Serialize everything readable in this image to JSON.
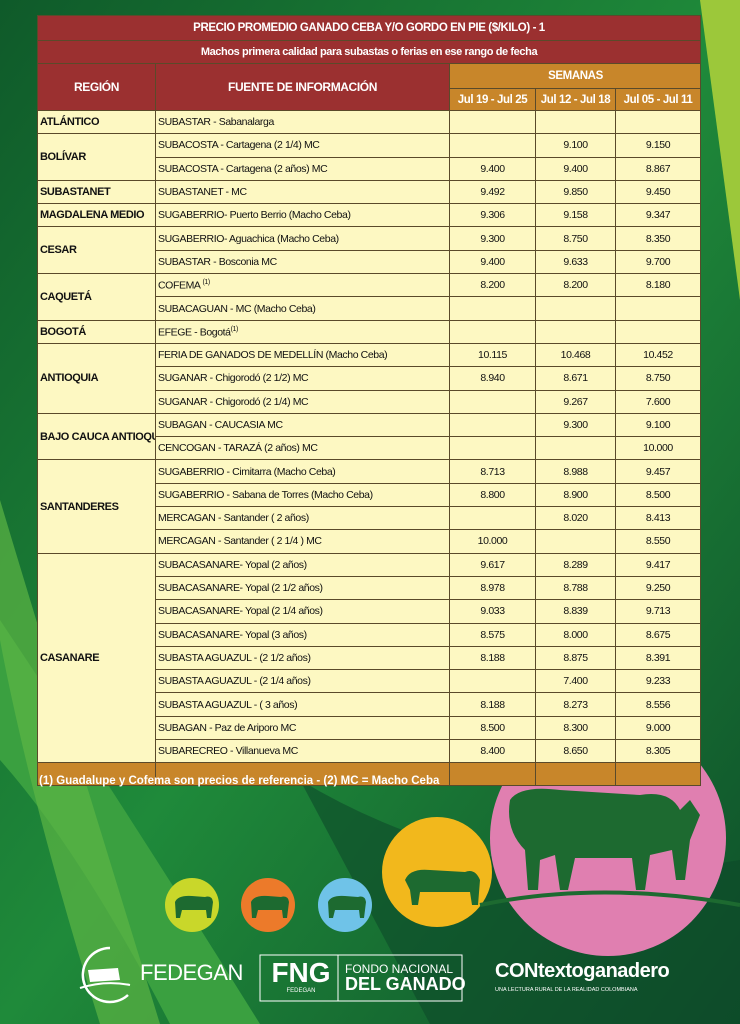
{
  "title": "PRECIO PROMEDIO GANADO CEBA Y/O GORDO EN PIE ($/KILO) - 1",
  "subtitle": "Machos primera calidad para subastas o ferias en ese rango de fecha",
  "headers": {
    "region": "REGIÓN",
    "source": "FUENTE DE INFORMACIÓN",
    "weeks": "SEMANAS",
    "dates": [
      "Jul 19 - Jul 25",
      "Jul 12 - Jul 18",
      "Jul 05 - Jul 11"
    ]
  },
  "regions": [
    {
      "name": "ATLÁNTICO",
      "rows": [
        {
          "source": "SUBASTAR - Sabanalarga",
          "values": [
            "",
            "",
            ""
          ]
        }
      ]
    },
    {
      "name": "BOLÍVAR",
      "rows": [
        {
          "source": "SUBACOSTA - Cartagena (2 1/4) MC",
          "values": [
            "",
            "9.100",
            "9.150"
          ]
        },
        {
          "source": "SUBACOSTA - Cartagena (2 años) MC",
          "values": [
            "9.400",
            "9.400",
            "8.867"
          ]
        }
      ]
    },
    {
      "name": "SUBASTANET",
      "rows": [
        {
          "source": "SUBASTANET - MC",
          "values": [
            "9.492",
            "9.850",
            "9.450"
          ]
        }
      ]
    },
    {
      "name": "MAGDALENA MEDIO",
      "rows": [
        {
          "source": "SUGABERRIO- Puerto Berrio (Macho Ceba)",
          "values": [
            "9.306",
            "9.158",
            "9.347"
          ]
        }
      ]
    },
    {
      "name": "CESAR",
      "rows": [
        {
          "source": "SUGABERRIO- Aguachica  (Macho Ceba)",
          "values": [
            "9.300",
            "8.750",
            "8.350"
          ]
        },
        {
          "source": "SUBASTAR - Bosconia MC",
          "values": [
            "9.400",
            "9.633",
            "9.700"
          ]
        }
      ]
    },
    {
      "name": "CAQUETÁ",
      "rows": [
        {
          "source": "COFEMA ",
          "sup": "(1)",
          "values": [
            "8.200",
            "8.200",
            "8.180"
          ]
        },
        {
          "source": "SUBACAGUAN - MC (Macho Ceba)",
          "values": [
            "",
            "",
            ""
          ]
        }
      ]
    },
    {
      "name": "BOGOTÁ",
      "rows": [
        {
          "source": "EFEGE - Bogotá",
          "sup": "(1)",
          "values": [
            "",
            "",
            ""
          ]
        }
      ]
    },
    {
      "name": "ANTIOQUIA",
      "rows": [
        {
          "source": "FERIA DE GANADOS DE MEDELLÍN (Macho Ceba)",
          "values": [
            "10.115",
            "10.468",
            "10.452"
          ]
        },
        {
          "source": "SUGANAR - Chigorodó (2 1/2) MC",
          "values": [
            "8.940",
            "8.671",
            "8.750"
          ]
        },
        {
          "source": "SUGANAR - Chigorodó (2 1/4) MC",
          "values": [
            "",
            "9.267",
            "7.600"
          ]
        }
      ]
    },
    {
      "name": "BAJO CAUCA ANTIOQUEÑO",
      "rows": [
        {
          "source": "SUBAGAN - CAUCASIA MC",
          "values": [
            "",
            "9.300",
            "9.100"
          ]
        },
        {
          "source": "CENCOGAN - TARAZÁ (2 años) MC",
          "values": [
            "",
            "",
            "10.000"
          ]
        }
      ]
    },
    {
      "name": "SANTANDERES",
      "rows": [
        {
          "source": "SUGABERRIO - Cimitarra (Macho Ceba)",
          "values": [
            "8.713",
            "8.988",
            "9.457"
          ]
        },
        {
          "source": "SUGABERRIO - Sabana de Torres (Macho Ceba)",
          "values": [
            "8.800",
            "8.900",
            "8.500"
          ]
        },
        {
          "source": "MERCAGAN - Santander ( 2 años)",
          "values": [
            "",
            "8.020",
            "8.413"
          ]
        },
        {
          "source": "MERCAGAN - Santander ( 2 1/4 ) MC",
          "values": [
            "10.000",
            "",
            "8.550"
          ]
        }
      ]
    },
    {
      "name": "CASANARE",
      "rows": [
        {
          "source": "SUBACASANARE- Yopal (2 años)",
          "values": [
            "9.617",
            "8.289",
            "9.417"
          ]
        },
        {
          "source": "SUBACASANARE- Yopal (2 1/2 años)",
          "values": [
            "8.978",
            "8.788",
            "9.250"
          ]
        },
        {
          "source": "SUBACASANARE- Yopal (2 1/4 años)",
          "values": [
            "9.033",
            "8.839",
            "9.713"
          ]
        },
        {
          "source": "SUBACASANARE- Yopal (3 años)",
          "values": [
            "8.575",
            "8.000",
            "8.675"
          ]
        },
        {
          "source": "SUBASTA AGUAZUL - (2 1/2 años)",
          "values": [
            "8.188",
            "8.875",
            "8.391"
          ]
        },
        {
          "source": "SUBASTA AGUAZUL - (2 1/4 años)",
          "values": [
            "",
            "7.400",
            "9.233"
          ]
        },
        {
          "source": "SUBASTA AGUAZUL - ( 3 años)",
          "values": [
            "8.188",
            "8.273",
            "8.556"
          ]
        },
        {
          "source": "SUBAGAN - Paz de Ariporo MC",
          "values": [
            "8.500",
            "8.300",
            "9.000"
          ]
        },
        {
          "source": "SUBARECREO - Villanueva MC",
          "values": [
            "8.400",
            "8.650",
            "8.305"
          ]
        }
      ]
    }
  ],
  "footnote": "(1) Guadalupe y Cofema son precios de referencia  -  (2) MC = Macho Ceba",
  "logos": {
    "fedegan": "FEDEGAN",
    "fng_short": "FNG",
    "fng_sub": "FEDEGAN",
    "fng_line1": "FONDO NACIONAL",
    "fng_line2": "DEL GANADO",
    "contexto": "CONtextoganadero",
    "contexto_tagline": "UNA LECTURA RURAL DE LA REALIDAD COLOMBIANA"
  },
  "colors": {
    "header_red": "#9b3030",
    "header_gold": "#c8862a",
    "cell_yellow": "#fdf8c2",
    "bg_green": "#1d7a35",
    "pink": "#e07fb0",
    "yellow": "#f2b81c",
    "orange": "#ec7a2a",
    "light_blue": "#6fc3e8",
    "lime": "#c9d72a"
  }
}
